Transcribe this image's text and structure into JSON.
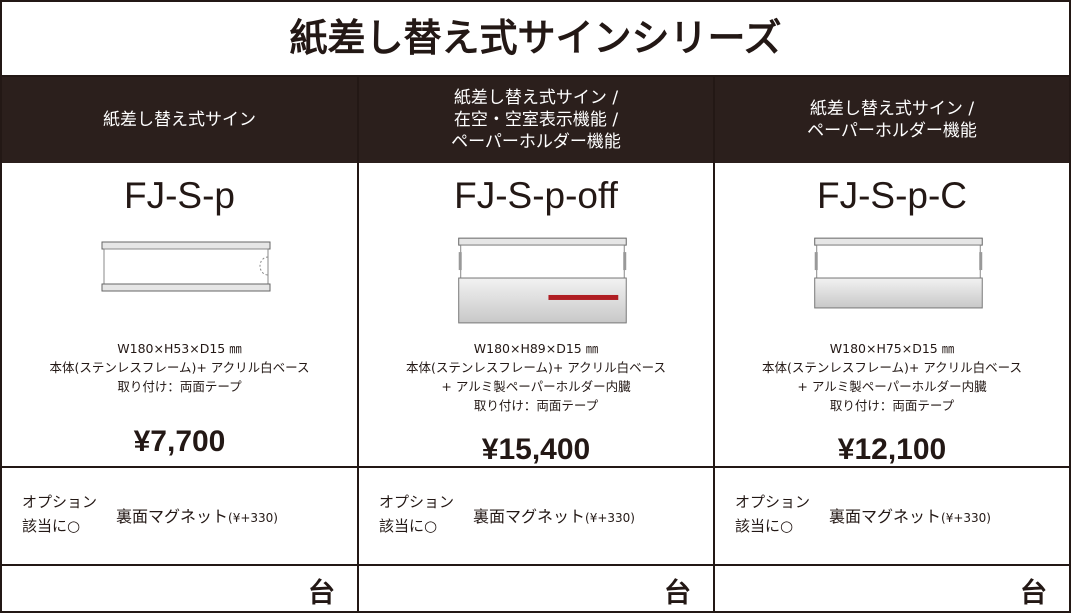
{
  "title": "紙差し替え式サインシリーズ",
  "columns": [
    {
      "header": [
        "紙差し替え式サイン"
      ],
      "model": "FJ-S-p",
      "specs": [
        "W180×H53×D15 ㎜",
        "本体(ステンレスフレーム)+ アクリル白ベース",
        "取り付け：両面テープ"
      ],
      "price": "¥7,700",
      "option_label": [
        "オプション",
        "該当に○"
      ],
      "option_name": "裏面マグネット",
      "option_price": "(¥+330)",
      "unit": "台"
    },
    {
      "header": [
        "紙差し替え式サイン /",
        "在空・空室表示機能 /",
        "ペーパーホルダー機能"
      ],
      "model": "FJ-S-p-off",
      "specs": [
        "W180×H89×D15 ㎜",
        "本体(ステンレスフレーム)+ アクリル白ベース",
        "+ アルミ製ペーパーホルダー内臓",
        "取り付け：両面テープ"
      ],
      "price": "¥15,400",
      "option_label": [
        "オプション",
        "該当に○"
      ],
      "option_name": "裏面マグネット",
      "option_price": "(¥+330)",
      "unit": "台"
    },
    {
      "header": [
        "紙差し替え式サイン /",
        "ペーパーホルダー機能"
      ],
      "model": "FJ-S-p-C",
      "specs": [
        "W180×H75×D15 ㎜",
        "本体(ステンレスフレーム)+ アクリル白ベース",
        "+ アルミ製ペーパーホルダー内臓",
        "取り付け：両面テープ"
      ],
      "price": "¥12,100",
      "option_label": [
        "オプション",
        "該当に○"
      ],
      "option_name": "裏面マグネット",
      "option_price": "(¥+330)",
      "unit": "台"
    }
  ]
}
